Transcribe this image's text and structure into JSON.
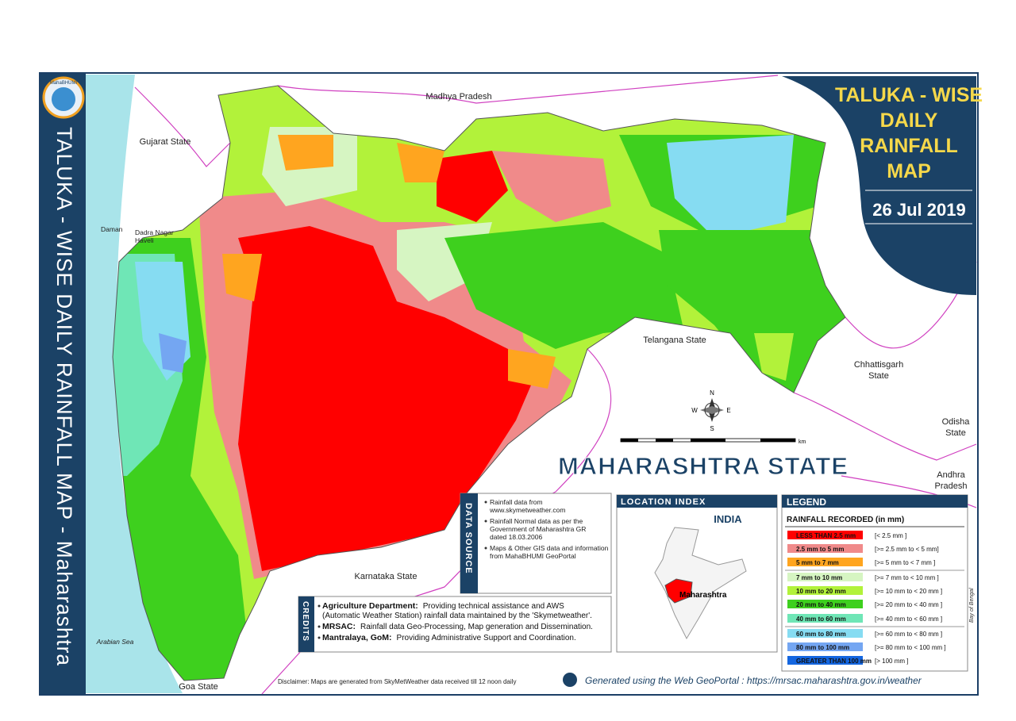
{
  "vertical_title": "TALUKA - WISE DAILY RAINFALL MAP - Maharashtra",
  "logo_text": "MahaBHUMI",
  "title_box": {
    "title_lines": [
      "TALUKA - WISE",
      "DAILY",
      "RAINFALL",
      "MAP"
    ],
    "date": "26 Jul 2019"
  },
  "map_labels": [
    "Madhya Pradesh",
    "Gujarat State",
    "Daman",
    "Dadra Nagar",
    "Haveli",
    "Telangana State",
    "Chhattisgarh",
    "State",
    "Odisha",
    "State",
    "Andhra",
    "Pradesh",
    "Karnataka State",
    "Arabian Sea",
    "Goa State",
    "Bay of Bengal"
  ],
  "state_name": "MAHARASHTRA  STATE",
  "compass": {
    "n": "N",
    "s": "S",
    "e": "E",
    "w": "W"
  },
  "scale_unit": "km",
  "data_source": {
    "heading": "DATA SOURCE",
    "items": [
      [
        "Rainfall data from",
        "www.skymetweather.com"
      ],
      [
        "Rainfall Normal data as per the",
        "Government of Maharashtra GR",
        "dated 18.03.2006"
      ],
      [
        "Maps & Other GIS data and information",
        "from MahaBHUMI GeoPortal"
      ]
    ]
  },
  "location_index": {
    "heading": "LOCATION INDEX",
    "country": "INDIA",
    "state": "Maharashtra"
  },
  "legend": {
    "heading": "LEGEND",
    "subtitle": "RAINFALL RECORDED (in mm)",
    "items": [
      {
        "label": "LESS THAN 2.5 mm",
        "range": "[< 2.5 mm ]",
        "color": "#ff0000"
      },
      {
        "label": "2.5 mm to 5 mm",
        "range": "[>= 2.5 mm  to  < 5 mm]",
        "color": "#f08a8a"
      },
      {
        "label": "5 mm to 7 mm",
        "range": "[>= 5 mm  to < 7 mm ]",
        "color": "#ffa51f"
      },
      {
        "label": "7 mm to 10 mm",
        "range": "[>= 7 mm to < 10 mm ]",
        "color": "#d6f5c2"
      },
      {
        "label": "10 mm to 20 mm",
        "range": "[>= 10 mm to < 20 mm ]",
        "color": "#b2f23a"
      },
      {
        "label": "20 mm to 40 mm",
        "range": "[>= 20 mm to < 40 mm ]",
        "color": "#3ed01e"
      },
      {
        "label": "40 mm to 60 mm",
        "range": "[>= 40 mm to < 60 mm ]",
        "color": "#6fe6b6"
      },
      {
        "label": "60 mm to 80 mm",
        "range": "[>= 60 mm to < 80 mm ]",
        "color": "#86dcf2"
      },
      {
        "label": "80 mm to 100 mm",
        "range": "[>= 80 mm to < 100 mm ]",
        "color": "#74a6f2"
      },
      {
        "label": "GREATER THAN 100 mm",
        "range": "[> 100 mm ]",
        "color": "#1466e0"
      }
    ]
  },
  "credits": {
    "heading": "CREDITS",
    "items": [
      {
        "org": "Agriculture Department:",
        "lines": [
          "Providing technical assistance and AWS",
          "(Automatic Weather Station) rainfall data maintained by the 'Skymetweather'."
        ]
      },
      {
        "org": "MRSAC:",
        "lines": [
          "Rainfall data Geo-Processing, Map generation and Dissemination."
        ]
      },
      {
        "org": "Mantralaya, GoM:",
        "lines": [
          "Providing Administrative Support and Coordination."
        ]
      }
    ]
  },
  "disclaimer": "Disclaimer: Maps are generated from SkyMetWeather data received till 12  noon daily",
  "generated": "Generated using the Web GeoPortal : https://mrsac.maharashtra.gov.in/weather"
}
